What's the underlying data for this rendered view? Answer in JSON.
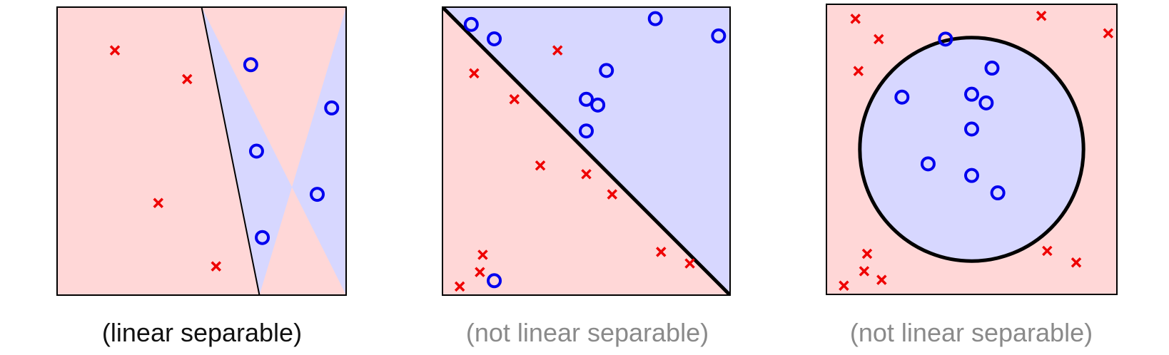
{
  "colors": {
    "red_region": "#ffd7d7",
    "blue_region": "#d7d7ff",
    "cross": "#ee0000",
    "circle": "#0000ee",
    "frame": "#000000",
    "caption_dark": "#111111",
    "caption_gray": "#8a8a8a"
  },
  "panels": [
    {
      "id": "linear",
      "caption": "(linear separable)",
      "caption_style": "dark",
      "boundary": {
        "kind": "line",
        "from": [
          0.5,
          1.0
        ],
        "to": [
          0.7,
          0.0
        ],
        "side_positive": "right"
      },
      "crosses": [
        [
          0.2,
          0.85
        ],
        [
          0.45,
          0.75
        ],
        [
          0.35,
          0.32
        ],
        [
          0.55,
          0.1
        ]
      ],
      "circles": [
        [
          0.67,
          0.8
        ],
        [
          0.95,
          0.65
        ],
        [
          0.69,
          0.5
        ],
        [
          0.9,
          0.35
        ],
        [
          0.71,
          0.2
        ]
      ]
    },
    {
      "id": "diagonal",
      "caption": "(not linear separable)",
      "caption_style": "gray",
      "boundary": {
        "kind": "line",
        "from": [
          0.0,
          1.0
        ],
        "to": [
          1.0,
          0.0
        ],
        "side_positive": "upper"
      },
      "crosses": [
        [
          0.4,
          0.85
        ],
        [
          0.11,
          0.77
        ],
        [
          0.25,
          0.68
        ],
        [
          0.34,
          0.45
        ],
        [
          0.5,
          0.42
        ],
        [
          0.59,
          0.35
        ],
        [
          0.14,
          0.14
        ],
        [
          0.13,
          0.08
        ],
        [
          0.06,
          0.03
        ],
        [
          0.76,
          0.15
        ],
        [
          0.86,
          0.11
        ]
      ],
      "circles": [
        [
          0.1,
          0.94
        ],
        [
          0.18,
          0.89
        ],
        [
          0.74,
          0.96
        ],
        [
          0.96,
          0.9
        ],
        [
          0.57,
          0.78
        ],
        [
          0.5,
          0.68
        ],
        [
          0.54,
          0.66
        ],
        [
          0.5,
          0.57
        ],
        [
          0.18,
          0.05
        ]
      ]
    },
    {
      "id": "circular",
      "caption": "(not linear separable)",
      "caption_style": "gray",
      "boundary": {
        "kind": "circle",
        "center": [
          0.5,
          0.5
        ],
        "radius": 0.385
      },
      "crosses": [
        [
          0.1,
          0.95
        ],
        [
          0.18,
          0.88
        ],
        [
          0.11,
          0.77
        ],
        [
          0.74,
          0.96
        ],
        [
          0.97,
          0.9
        ],
        [
          0.14,
          0.14
        ],
        [
          0.13,
          0.08
        ],
        [
          0.06,
          0.03
        ],
        [
          0.19,
          0.05
        ],
        [
          0.76,
          0.15
        ],
        [
          0.86,
          0.11
        ]
      ],
      "circles": [
        [
          0.41,
          0.88
        ],
        [
          0.57,
          0.78
        ],
        [
          0.26,
          0.68
        ],
        [
          0.5,
          0.69
        ],
        [
          0.55,
          0.66
        ],
        [
          0.5,
          0.57
        ],
        [
          0.35,
          0.45
        ],
        [
          0.5,
          0.41
        ],
        [
          0.59,
          0.35
        ]
      ]
    }
  ]
}
